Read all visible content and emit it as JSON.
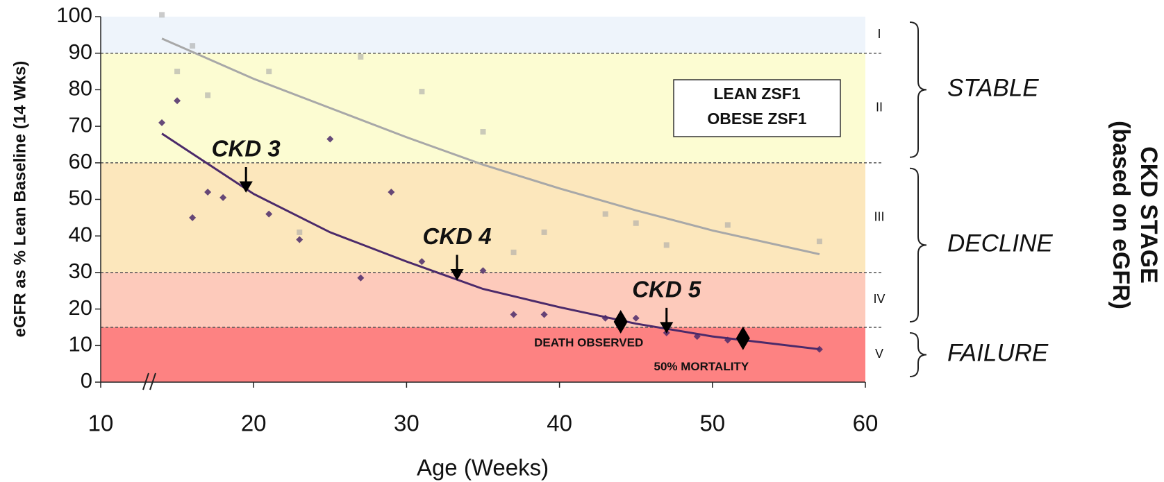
{
  "chart_data": {
    "type": "scatter",
    "x_label": "Age (Weeks)",
    "y_label": "eGFR as % Lean Baseline (14 Wks)",
    "right_label": [
      "CKD STAGE",
      "(based on eGFR)"
    ],
    "xlim": [
      10,
      60
    ],
    "ylim": [
      0,
      100
    ],
    "xticks": [
      10,
      20,
      30,
      40,
      50,
      60
    ],
    "yticks": [
      0,
      10,
      20,
      30,
      40,
      50,
      60,
      70,
      80,
      90,
      100
    ],
    "grid": false,
    "legend": "upper right",
    "bands": [
      {
        "label": "V",
        "from": 0,
        "to": 15,
        "color": "#fd8282"
      },
      {
        "label": "IV",
        "from": 15,
        "to": 30,
        "color": "#fdcabb"
      },
      {
        "label": "III",
        "from": 30,
        "to": 60,
        "color": "#fce7bc"
      },
      {
        "label": "II",
        "from": 60,
        "to": 90,
        "color": "#fcfcd2"
      },
      {
        "label": "I",
        "from": 90,
        "to": 100,
        "color": "#eef4fb"
      }
    ],
    "groups": [
      {
        "label": "STABLE",
        "from": 60,
        "to": 100
      },
      {
        "label": "DECLINE",
        "from": 15,
        "to": 60
      },
      {
        "label": "FAILURE",
        "from": 0,
        "to": 15
      }
    ],
    "series": [
      {
        "name": "LEAN ZSF1",
        "color": "#a8a8a8",
        "x": [
          14,
          15,
          16,
          17,
          21,
          23,
          27,
          31,
          35,
          37,
          39,
          43,
          45,
          47,
          51,
          57
        ],
        "values": [
          100.5,
          85,
          92,
          78.5,
          85,
          41,
          89,
          79.5,
          68.5,
          35.5,
          41,
          46,
          43.5,
          37.5,
          43,
          38.5
        ],
        "trend_x": [
          14,
          20,
          25,
          30,
          35,
          40,
          45,
          50,
          57
        ],
        "trend": [
          94,
          83,
          75,
          67,
          59.5,
          53,
          47,
          41.5,
          35
        ]
      },
      {
        "name": "OBESE ZSF1",
        "color": "#4b2a6a",
        "x": [
          14,
          15,
          16,
          17,
          18,
          21,
          23,
          25,
          27,
          29,
          31,
          35,
          37,
          39,
          43,
          45,
          47,
          49,
          51,
          57
        ],
        "values": [
          71,
          77,
          45,
          52,
          50.5,
          46,
          39,
          66.5,
          28.5,
          52,
          33,
          30.5,
          18.5,
          18.5,
          17.5,
          17.5,
          13.5,
          12.5,
          11.5,
          9
        ],
        "trend_x": [
          14,
          20,
          25,
          30,
          35,
          40,
          45,
          50,
          57
        ],
        "trend": [
          68,
          51.5,
          41,
          33,
          25.5,
          20.5,
          16,
          12.5,
          9
        ]
      }
    ],
    "annotations": [
      {
        "text": "CKD 3",
        "x": 19.5,
        "y": 52
      },
      {
        "text": "CKD 4",
        "x": 33.3,
        "y": 28
      },
      {
        "text": "CKD 5",
        "x": 47,
        "y": 13.5
      }
    ],
    "markers": [
      {
        "label": "DEATH OBSERVED",
        "x": 44,
        "y": 16.5
      },
      {
        "label": "50% MORTALITY",
        "x": 52,
        "y": 12
      }
    ]
  }
}
